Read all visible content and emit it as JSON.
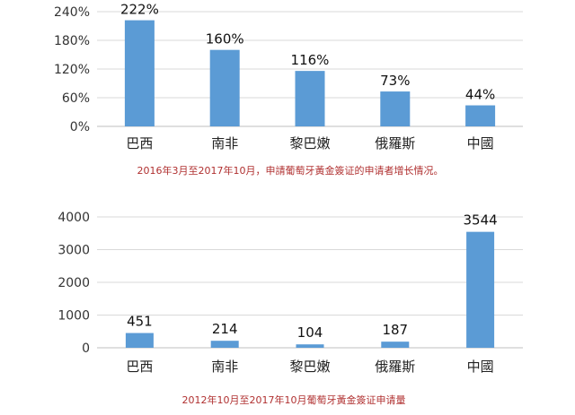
{
  "chart_data": [
    {
      "type": "bar",
      "categories": [
        "巴西",
        "南非",
        "黎巴嫩",
        "俄羅斯",
        "中國"
      ],
      "values": [
        222,
        160,
        116,
        73,
        44
      ],
      "data_labels": [
        "222%",
        "160%",
        "116%",
        "73%",
        "44%"
      ],
      "yticks": [
        "0%",
        "60%",
        "120%",
        "180%",
        "240%"
      ],
      "ylim": [
        0,
        240
      ],
      "grid": true,
      "bar_color": "#5b9bd5",
      "caption": "2016年3月至2017年10月，申請葡萄牙黃金簽证的申请者增长情况。"
    },
    {
      "type": "bar",
      "categories": [
        "巴西",
        "南非",
        "黎巴嫩",
        "俄羅斯",
        "中國"
      ],
      "values": [
        451,
        214,
        104,
        187,
        3544
      ],
      "data_labels": [
        "451",
        "214",
        "104",
        "187",
        "3544"
      ],
      "yticks": [
        "0",
        "1000",
        "2000",
        "3000",
        "4000"
      ],
      "ylim": [
        0,
        4000
      ],
      "grid": true,
      "bar_color": "#5b9bd5",
      "caption": "2012年10月至2017年10月葡萄牙黃金簽证申请量"
    }
  ]
}
